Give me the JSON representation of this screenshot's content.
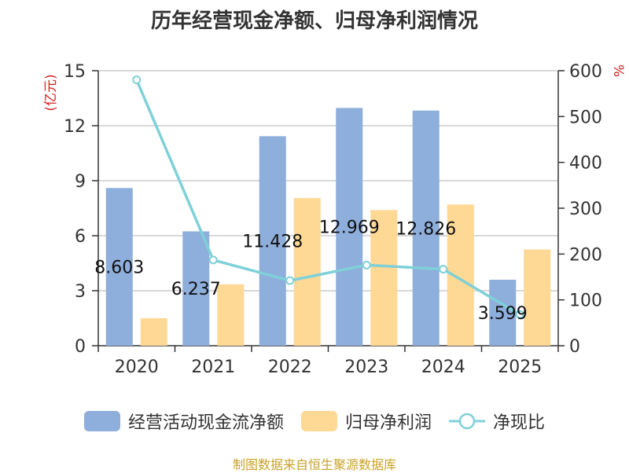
{
  "title": "历年经营现金净额、归母净利润情况",
  "source": "制图数据来自恒生聚源数据库",
  "colors": {
    "bar1": "#8eaedb",
    "bar2": "#fed895",
    "line": "#7fd0d8",
    "axis": "#333333",
    "grid": "#cccccc",
    "unit": "#d42020"
  },
  "chart_data": {
    "type": "bar+line",
    "categories": [
      "2020",
      "2021",
      "2022",
      "2023",
      "2024",
      "2025"
    ],
    "y_left": {
      "label": "(亿元)",
      "range": [
        0,
        15
      ],
      "ticks": [
        "0",
        "3",
        "6",
        "9",
        "12",
        "15"
      ]
    },
    "y_right": {
      "label": "%",
      "range": [
        0,
        600
      ],
      "ticks": [
        "0",
        "100",
        "200",
        "300",
        "400",
        "500",
        "600"
      ]
    },
    "series": [
      {
        "name": "经营活动现金流净额",
        "type": "bar",
        "axis": "left",
        "values": [
          8.603,
          6.237,
          11.428,
          12.969,
          12.826,
          3.599
        ],
        "labels": [
          "8.603",
          "6.237",
          "11.428",
          "12.969",
          "12.826",
          "3.599"
        ]
      },
      {
        "name": "归母净利润",
        "type": "bar",
        "axis": "left",
        "values": [
          1.5,
          3.35,
          8.05,
          7.4,
          7.7,
          5.25
        ]
      },
      {
        "name": "净现比",
        "type": "line",
        "axis": "right",
        "values": [
          580,
          187,
          142,
          176,
          167,
          68
        ]
      }
    ],
    "grid": true,
    "legend": "bottom"
  }
}
